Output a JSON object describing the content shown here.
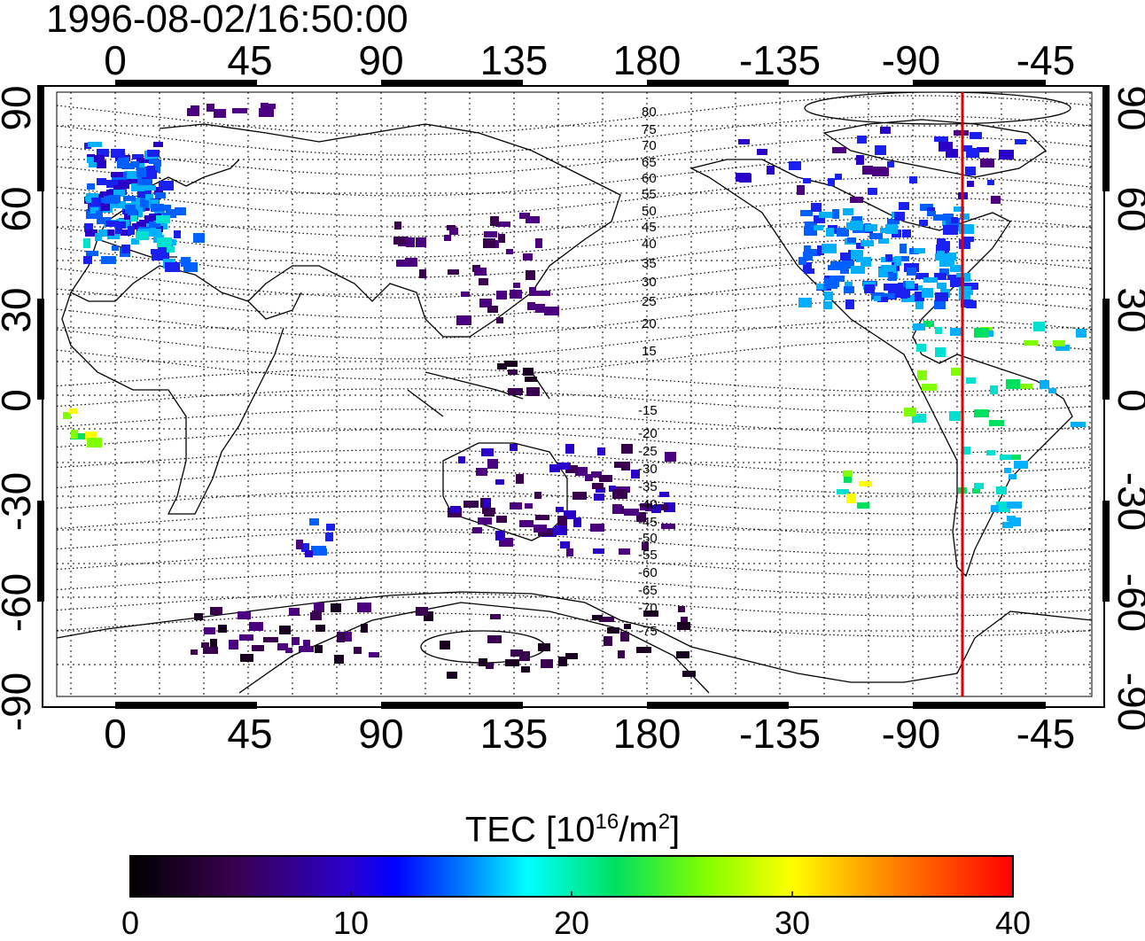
{
  "title": "1996-08-02/16:50:00",
  "top_lon_labels": [
    "0",
    "45",
    "90",
    "135",
    "180",
    "-135",
    "-90",
    "-45"
  ],
  "bottom_lon_labels": [
    "0",
    "45",
    "90",
    "135",
    "180",
    "-135",
    "-90",
    "-45"
  ],
  "left_lat_labels": [
    "90",
    "60",
    "30",
    "0",
    "-30",
    "-60",
    "-90"
  ],
  "right_lat_labels": [
    "90",
    "60",
    "30",
    "0",
    "-30",
    "-60",
    "-90"
  ],
  "contour_labels": [
    "80",
    "75",
    "70",
    "65",
    "60",
    "55",
    "50",
    "45",
    "40",
    "35",
    "30",
    "25",
    "20",
    "15",
    "-15",
    "-20",
    "-25",
    "-30",
    "-35",
    "-40",
    "-45",
    "-50",
    "-55",
    "-60",
    "-65",
    "-70",
    "-75"
  ],
  "colorbar": {
    "title_main": "TEC  [10",
    "title_exp1": "16",
    "title_mid": "/m",
    "title_exp2": "2",
    "title_end": "]",
    "ticks": [
      "0",
      "10",
      "20",
      "30",
      "40"
    ],
    "min": 0,
    "max": 40
  },
  "colors": {
    "terminator": "#e00000",
    "background": "#ffffff"
  }
}
